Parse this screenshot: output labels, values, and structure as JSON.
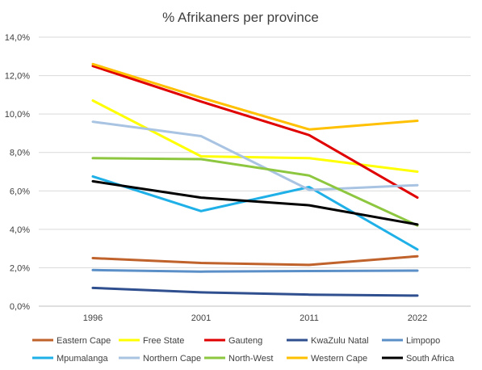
{
  "chart_data": {
    "type": "line",
    "title": "% Afrikaners per province",
    "xlabel": "",
    "ylabel": "",
    "categories": [
      "1996",
      "2001",
      "2011",
      "2022"
    ],
    "ylim": [
      0,
      14
    ],
    "yticks": [
      "0,0%",
      "2,0%",
      "4,0%",
      "6,0%",
      "8,0%",
      "10,0%",
      "12,0%",
      "14,0%"
    ],
    "grid": true,
    "legend_position": "bottom",
    "series": [
      {
        "name": "Eastern Cape",
        "color": "#c0622b",
        "values": [
          2.5,
          2.25,
          2.15,
          2.6
        ]
      },
      {
        "name": "Free State",
        "color": "#ffff00",
        "values": [
          10.7,
          7.8,
          7.7,
          7.0
        ]
      },
      {
        "name": "Gauteng",
        "color": "#e00000",
        "values": [
          12.5,
          10.65,
          8.9,
          5.65
        ]
      },
      {
        "name": "KwaZulu Natal",
        "color": "#2f4f8f",
        "values": [
          0.95,
          0.72,
          0.6,
          0.55
        ]
      },
      {
        "name": "Limpopo",
        "color": "#5b8fc7",
        "values": [
          1.88,
          1.8,
          1.83,
          1.85
        ]
      },
      {
        "name": "Mpumalanga",
        "color": "#1fb0e8",
        "values": [
          6.75,
          4.95,
          6.2,
          2.95
        ]
      },
      {
        "name": "Northern Cape",
        "color": "#a9c4e2",
        "values": [
          9.6,
          8.85,
          6.05,
          6.3
        ]
      },
      {
        "name": "North-West",
        "color": "#8dc63f",
        "values": [
          7.7,
          7.65,
          6.8,
          4.2
        ]
      },
      {
        "name": "Western Cape",
        "color": "#ffc000",
        "values": [
          12.6,
          10.85,
          9.2,
          9.65
        ]
      },
      {
        "name": "South Africa",
        "color": "#000000",
        "values": [
          6.5,
          5.65,
          5.25,
          4.25
        ]
      }
    ]
  }
}
